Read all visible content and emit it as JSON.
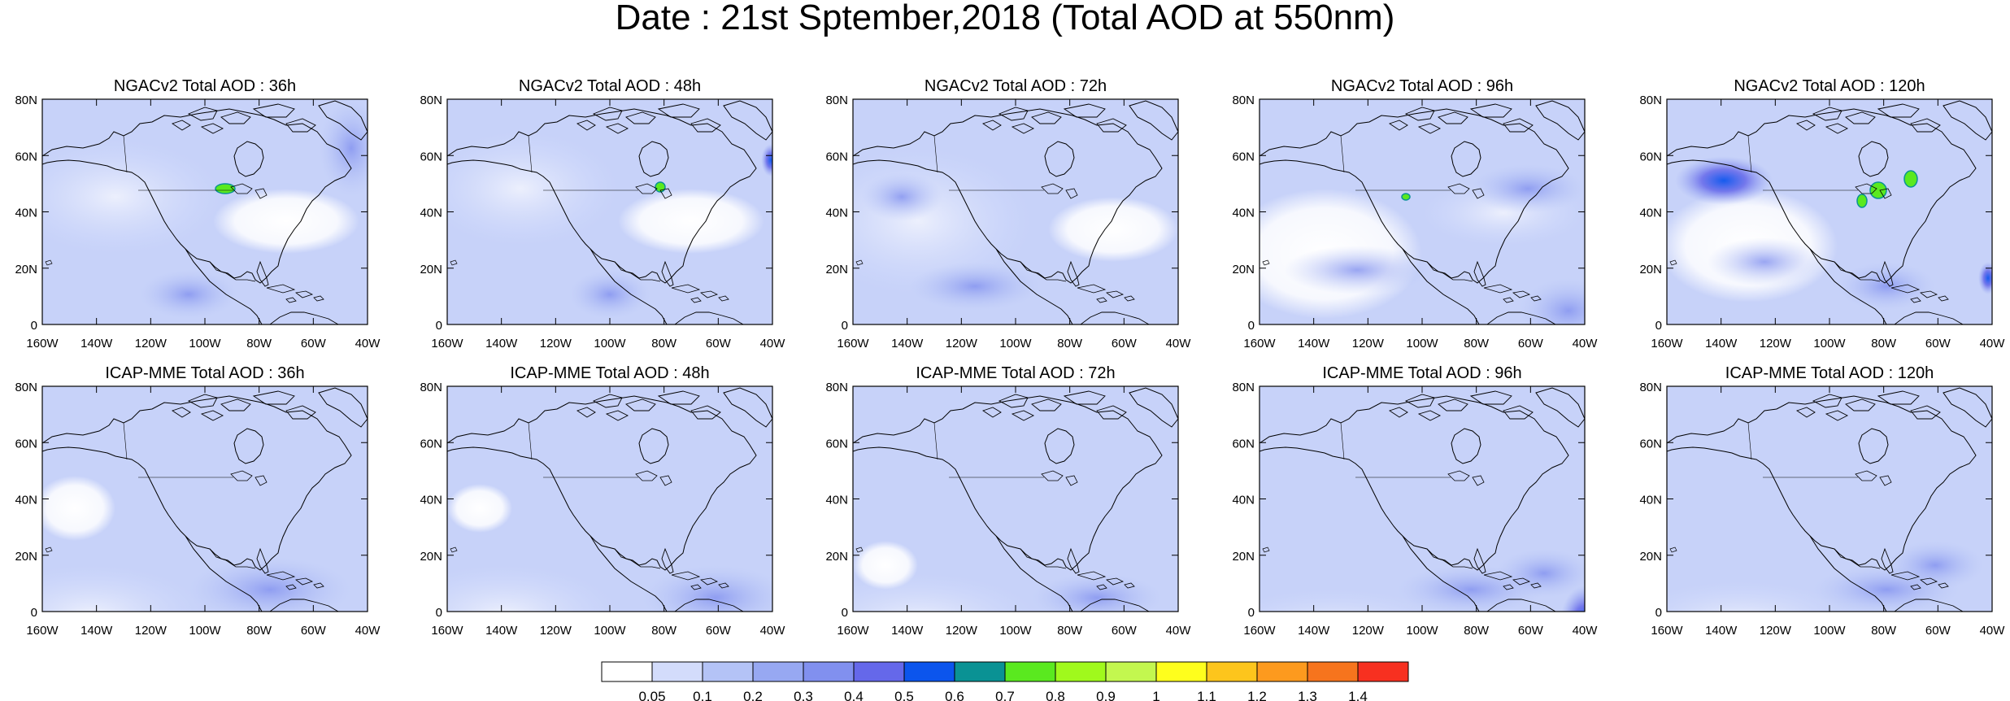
{
  "title": "Date : 21st Sptember,2018 (Total AOD at 550nm)",
  "lat_ticks": [
    "0",
    "20N",
    "40N",
    "60N",
    "80N"
  ],
  "lon_ticks": [
    "160W",
    "140W",
    "120W",
    "100W",
    "80W",
    "60W",
    "40W"
  ],
  "panels": [
    {
      "title": "NGACv2 Total AOD : 36h",
      "model": "NGACv2",
      "lead": "36h"
    },
    {
      "title": "NGACv2 Total AOD : 48h",
      "model": "NGACv2",
      "lead": "48h"
    },
    {
      "title": "NGACv2 Total AOD : 72h",
      "model": "NGACv2",
      "lead": "72h"
    },
    {
      "title": "NGACv2 Total AOD : 96h",
      "model": "NGACv2",
      "lead": "96h"
    },
    {
      "title": "NGACv2 Total AOD : 120h",
      "model": "NGACv2",
      "lead": "120h"
    },
    {
      "title": "ICAP-MME Total AOD : 36h",
      "model": "ICAP-MME",
      "lead": "36h"
    },
    {
      "title": "ICAP-MME Total AOD : 48h",
      "model": "ICAP-MME",
      "lead": "48h"
    },
    {
      "title": "ICAP-MME Total AOD : 72h",
      "model": "ICAP-MME",
      "lead": "72h"
    },
    {
      "title": "ICAP-MME Total AOD : 96h",
      "model": "ICAP-MME",
      "lead": "96h"
    },
    {
      "title": "ICAP-MME Total AOD : 120h",
      "model": "ICAP-MME",
      "lead": "120h"
    }
  ],
  "colorbar": {
    "colors": [
      "#ffffff",
      "#d3dcfb",
      "#b4c3f6",
      "#97a8f2",
      "#8190ef",
      "#6568ea",
      "#0c55ed",
      "#0a9294",
      "#5ae91f",
      "#a0f91c",
      "#c3f74f",
      "#fefe1d",
      "#fdc51c",
      "#fd9a1e",
      "#f6741d",
      "#f73020"
    ],
    "labels": [
      "0.05",
      "0.1",
      "0.2",
      "0.3",
      "0.4",
      "0.5",
      "0.6",
      "0.7",
      "0.8",
      "0.9",
      "1",
      "1.1",
      "1.2",
      "1.3",
      "1.4"
    ]
  }
}
